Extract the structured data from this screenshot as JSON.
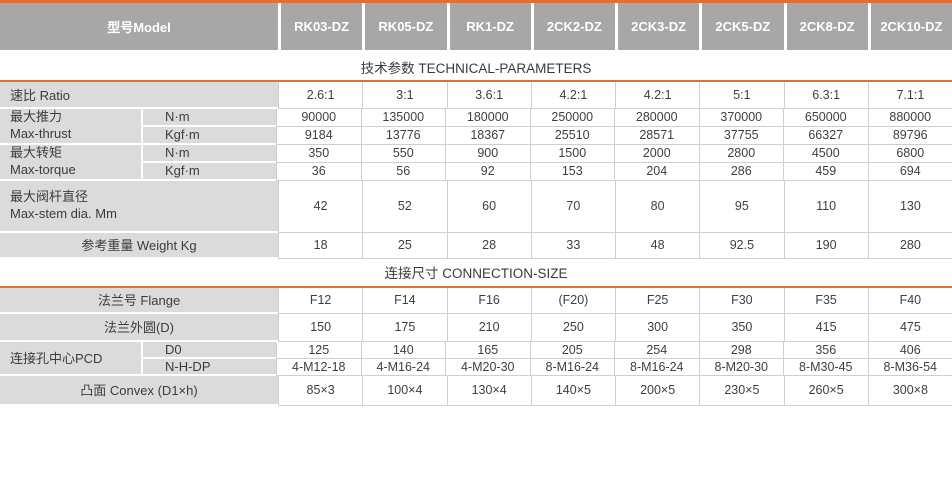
{
  "colors": {
    "accent_orange": "#DE7038",
    "header_gray": "#A7A7A7",
    "label_gray": "#DBDBDB",
    "grid_line": "#CFCFCF"
  },
  "header": {
    "model_label": "型号Model",
    "models": [
      "RK03-DZ",
      "RK05-DZ",
      "RK1-DZ",
      "2CK2-DZ",
      "2CK3-DZ",
      "2CK5-DZ",
      "2CK8-DZ",
      "2CK10-DZ"
    ]
  },
  "sections": {
    "technical": {
      "title": "技术参数 TECHNICAL-PARAMETERS"
    },
    "connection": {
      "title": "连接尺寸 CONNECTION-SIZE"
    }
  },
  "rows": {
    "ratio": {
      "label": "速比 Ratio",
      "values": [
        "2.6:1",
        "3:1",
        "3.6:1",
        "4.2:1",
        "4.2:1",
        "5:1",
        "6.3:1",
        "7.1:1"
      ]
    },
    "thrust": {
      "label_zh": "最大推力",
      "label_en": "Max-thrust",
      "nm": {
        "unit": "N·m",
        "values": [
          "90000",
          "135000",
          "180000",
          "250000",
          "280000",
          "370000",
          "650000",
          "880000"
        ]
      },
      "kgfm": {
        "unit": "Kgf·m",
        "values": [
          "9184",
          "13776",
          "18367",
          "25510",
          "28571",
          "37755",
          "66327",
          "89796"
        ]
      }
    },
    "torque": {
      "label_zh": "最大转矩",
      "label_en": "Max-torque",
      "nm": {
        "unit": "N·m",
        "values": [
          "350",
          "550",
          "900",
          "1500",
          "2000",
          "2800",
          "4500",
          "6800"
        ]
      },
      "kgfm": {
        "unit": "Kgf·m",
        "values": [
          "36",
          "56",
          "92",
          "153",
          "204",
          "286",
          "459",
          "694"
        ]
      }
    },
    "stem": {
      "label_zh": "最大阀杆直径",
      "label_en": "Max-stem dia. Mm",
      "values": [
        "42",
        "52",
        "60",
        "70",
        "80",
        "95",
        "110",
        "130"
      ]
    },
    "weight": {
      "label": "参考重量 Weight Kg",
      "values": [
        "18",
        "25",
        "28",
        "33",
        "48",
        "92.5",
        "190",
        "280"
      ]
    },
    "flange": {
      "label": "法兰号 Flange",
      "values": [
        "F12",
        "F14",
        "F16",
        "(F20)",
        "F25",
        "F30",
        "F35",
        "F40"
      ]
    },
    "flange_od": {
      "label": "法兰外圆(D)",
      "values": [
        "150",
        "175",
        "210",
        "250",
        "300",
        "350",
        "415",
        "475"
      ]
    },
    "pcd": {
      "label": "连接孔中心PCD",
      "d0": {
        "unit": "D0",
        "values": [
          "125",
          "140",
          "165",
          "205",
          "254",
          "298",
          "356",
          "406"
        ]
      },
      "nhdp": {
        "unit": "N-H-DP",
        "values": [
          "4-M12-18",
          "4-M16-24",
          "4-M20-30",
          "8-M16-24",
          "8-M16-24",
          "8-M20-30",
          "8-M30-45",
          "8-M36-54"
        ]
      }
    },
    "convex": {
      "label": "凸面 Convex (D1×h)",
      "values": [
        "85×3",
        "100×4",
        "130×4",
        "140×5",
        "200×5",
        "230×5",
        "260×5",
        "300×8"
      ]
    }
  }
}
